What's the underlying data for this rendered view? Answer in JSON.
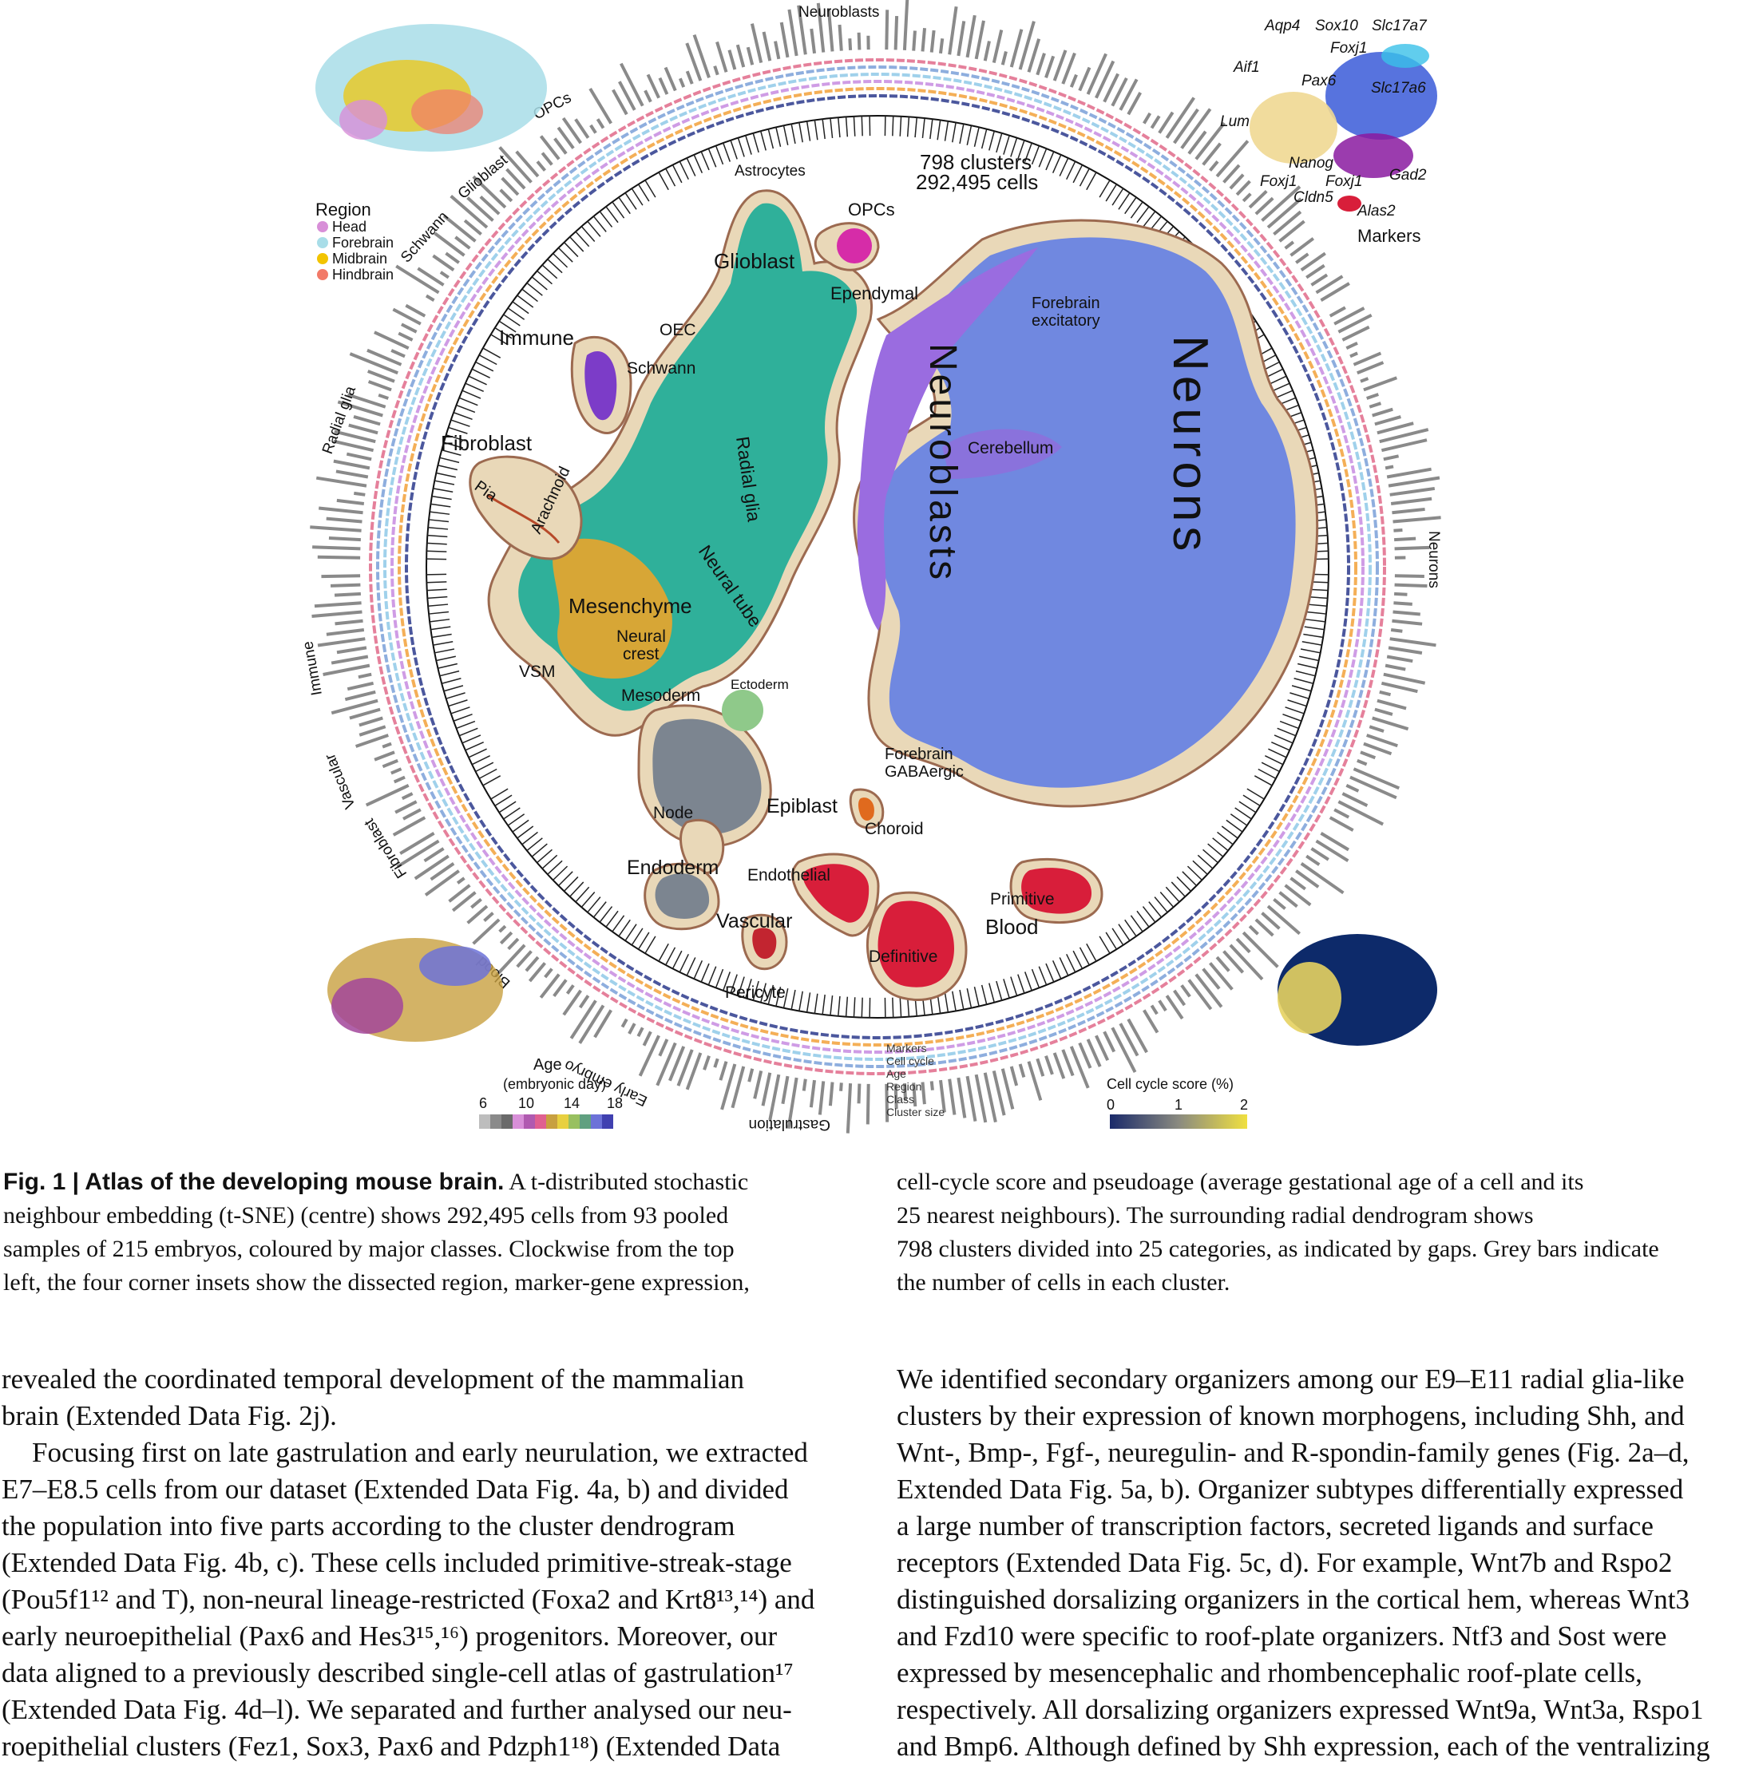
{
  "figure": {
    "header_counts": {
      "clusters": "798 clusters",
      "cells": "292,495 cells"
    },
    "ring_labels": [
      "Neuroblasts",
      "OPCs",
      "Glioblast",
      "Schwann",
      "Radial glia",
      "Immune",
      "Vascular",
      "Fibroblast",
      "Blood",
      "Early embryo",
      "Gastrulation",
      "Neurons"
    ],
    "track_labels": [
      "Markers",
      "Cell cycle",
      "Age",
      "Region",
      "Class",
      "Cluster size"
    ],
    "class_labels": {
      "astrocytes": "Astrocytes",
      "opcs": "OPCs",
      "glioblast": "Glioblast",
      "ependymal": "Ependymal",
      "oec": "OEC",
      "schwann": "Schwann",
      "immune": "Immune",
      "fibroblast": "Fibroblast",
      "pia": "Pia",
      "arachnoid": "Arachnoid",
      "radial_glia": "Radial glia",
      "neural_tube": "Neural tube",
      "mesenchyme": "Mesenchyme",
      "neural": "Neural",
      "crest": "crest",
      "vsm": "VSM",
      "mesoderm": "Mesoderm",
      "ectoderm": "Ectoderm",
      "node": "Node",
      "epiblast": "Epiblast",
      "choroid": "Choroid",
      "endoderm": "Endoderm",
      "endothelial": "Endothelial",
      "vascular": "Vascular",
      "pericyte": "Pericyte",
      "definitive": "Definitive",
      "primitive": "Primitive",
      "blood": "Blood",
      "forebrain_exc_1": "Forebrain",
      "forebrain_exc_2": "excitatory",
      "cerebellum": "Cerebellum",
      "forebrain_gaba_1": "Forebrain",
      "forebrain_gaba_2": "GABAergic",
      "neurons_big": "Neurons",
      "neuroblasts_big": "Neuroblasts"
    },
    "region_legend": {
      "title": "Region",
      "items": [
        {
          "label": "Head",
          "color": "#d88fd8"
        },
        {
          "label": "Forebrain",
          "color": "#a8dde8"
        },
        {
          "label": "Midbrain",
          "color": "#f2c400"
        },
        {
          "label": "Hindbrain",
          "color": "#f27a68"
        }
      ]
    },
    "marker_labels": [
      "Aqp4",
      "Sox10",
      "Slc17a7",
      "Foxj1",
      "Aif1",
      "Pax6",
      "Slc17a6",
      "Lum",
      "Nanog",
      "Gad2",
      "Foxj1",
      "Foxj1",
      "Cldn5",
      "Alas2"
    ],
    "markers_title": "Markers",
    "age_legend": {
      "title": "Age",
      "subtitle": "(embryonic day)",
      "ticks": [
        "6",
        "10",
        "14",
        "18"
      ]
    },
    "cellcycle_legend": {
      "title": "Cell cycle score (%)",
      "ticks": [
        "0",
        "1",
        "2"
      ]
    },
    "colors": {
      "neuron_blue": "#7088e0",
      "neuroblast_purple": "#9a6ce0",
      "glia_green": "#2fb09a",
      "mesenchyme_gold": "#d7a636",
      "blood_red": "#d81e3a",
      "endoderm_grey": "#7c8590",
      "halo": "#e9d8b8",
      "halo_edge": "#9c6a50"
    }
  },
  "caption": {
    "label": "Fig. 1 | Atlas of the developing mouse brain.",
    "left_lines": [
      " A t-distributed stochastic",
      "neighbour embedding (t-SNE) (centre) shows 292,495 cells from 93 pooled",
      "samples of 215 embryos, coloured by major classes. Clockwise from the top",
      "left, the four corner insets show the dissected region, marker-gene expression,"
    ],
    "right_lines": [
      "cell-cycle score and pseudoage (average gestational age of a cell and its",
      "25 nearest neighbours). The surrounding radial dendrogram shows",
      "798 clusters divided into 25 categories, as indicated by gaps. Grey bars indicate",
      "the number of cells in each cluster."
    ]
  },
  "body": {
    "left": [
      "revealed the coordinated temporal development of the mammalian",
      "brain (Extended Data Fig. 2j).",
      "Focusing first on late gastrulation and early neurulation, we extracted",
      "E7–E8.5 cells from our dataset (Extended Data Fig. 4a, b) and divided",
      "the population into five parts according to the cluster dendrogram",
      "(Extended Data Fig. 4b, c). These cells included primitive-streak-stage",
      "(Pou5f1¹² and T), non-neural lineage-restricted (Foxa2 and Krt8¹³,¹⁴) and",
      "early neuroepithelial (Pax6 and Hes3¹⁵,¹⁶) progenitors. Moreover, our",
      "data aligned to a previously described single-cell atlas of gastrulation¹⁷",
      "(Extended Data Fig. 4d–l). We separated and further analysed our neu-",
      "roepithelial clusters (Fez1, Sox3, Pax6 and Pdzph1¹⁸) (Extended Data"
    ],
    "right": [
      "We identified secondary organizers among our E9–E11 radial glia-like",
      "clusters by their expression of known morphogens, including Shh, and",
      "Wnt-, Bmp-, Fgf-, neuregulin- and R-spondin-family genes (Fig. 2a–d,",
      "Extended Data Fig. 5a, b). Organizer subtypes differentially expressed",
      "a large number of transcription factors, secreted ligands and surface",
      "receptors (Extended Data Fig. 5c, d). For example, Wnt7b and Rspo2",
      "distinguished dorsalizing organizers in the cortical hem, whereas Wnt3",
      "and Fzd10 were specific to roof-plate organizers. Ntf3 and Sost were",
      "expressed by mesencephalic and rhombencephalic roof-plate cells,",
      "respectively. All dorsalizing organizers expressed Wnt9a, Wnt3a, Rspo1",
      "and Bmp6. Although defined by Shh expression, each of the ventralizing"
    ]
  }
}
